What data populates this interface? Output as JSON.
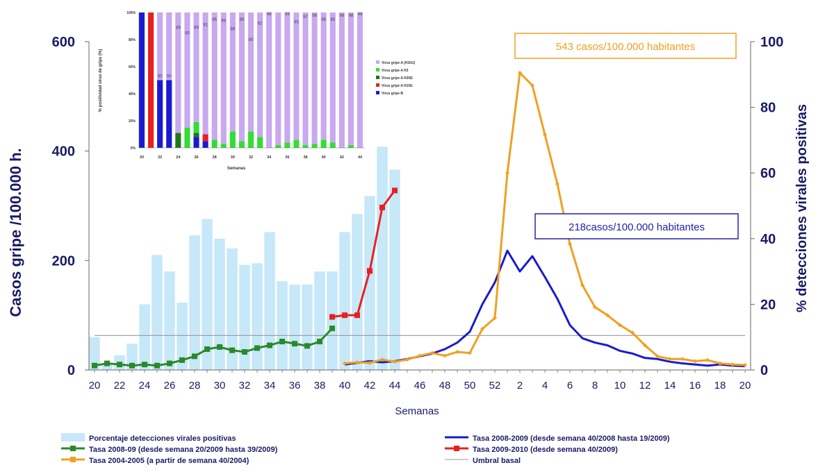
{
  "chart_data": [
    {
      "type": "bar+line",
      "ylabel_left": "Casos gripe /100.000 h.",
      "ylabel_right": "% detecciones virales positivas",
      "xlabel": "Semanas",
      "y_left_ticks": [
        "0",
        "200",
        "400",
        "600"
      ],
      "y_right_ticks": [
        "0",
        "20",
        "40",
        "60",
        "80",
        "100"
      ],
      "ylim_left": [
        0,
        600
      ],
      "ylim_right": [
        0,
        100
      ],
      "x_ticks": [
        "20",
        "22",
        "24",
        "26",
        "28",
        "30",
        "32",
        "34",
        "36",
        "38",
        "40",
        "42",
        "44",
        "46",
        "48",
        "50",
        "52",
        "2",
        "4",
        "6",
        "8",
        "10",
        "12",
        "14",
        "16",
        "18",
        "20"
      ],
      "x_count": 53,
      "bars": {
        "name": "Porcentaje detecciones virales positivas",
        "color": "#c6e8f8",
        "x_index": [
          0,
          1,
          2,
          3,
          4,
          5,
          6,
          7,
          8,
          9,
          10,
          11,
          12,
          13,
          14,
          15,
          16,
          17,
          18,
          19,
          20,
          21,
          22,
          23,
          24
        ],
        "values_pct": [
          10,
          2,
          4.5,
          8,
          20,
          35,
          30,
          20.5,
          41,
          46,
          40,
          37,
          32,
          32.5,
          42,
          27,
          26,
          26,
          30,
          30,
          42,
          47.5,
          53,
          68,
          61
        ]
      },
      "series": [
        {
          "name": "Tasa 2008-09 (desde semana 20/2009 hasta 39/2009)",
          "color": "#2a8a2a",
          "x_index": [
            0,
            1,
            2,
            3,
            4,
            5,
            6,
            7,
            8,
            9,
            10,
            11,
            12,
            13,
            14,
            15,
            16,
            17,
            18,
            19
          ],
          "values": [
            8,
            12,
            10,
            8,
            10,
            8,
            12,
            18,
            25,
            38,
            42,
            36,
            33,
            40,
            45,
            52,
            48,
            44,
            52,
            76
          ]
        },
        {
          "name": "Tasa 2009-2010 (desde semana 40/2009)",
          "color": "#e82020",
          "x_index": [
            19,
            20,
            21,
            22,
            23,
            24
          ],
          "values": [
            97,
            100,
            100,
            181,
            297,
            328
          ]
        },
        {
          "name": "Tasa 2008-2009 (desde semana 40/2008 hasta 19/2009)",
          "color": "#1a1ad0",
          "x_index": [
            20,
            21,
            22,
            23,
            24,
            25,
            26,
            27,
            28,
            29,
            30,
            31,
            32,
            33,
            34,
            35,
            36,
            37,
            38,
            39,
            40,
            41,
            42,
            43,
            44,
            45,
            46,
            47,
            48,
            49,
            50,
            51,
            52
          ],
          "values": [
            10,
            13,
            16,
            14,
            16,
            20,
            25,
            30,
            38,
            50,
            70,
            120,
            160,
            218,
            180,
            208,
            170,
            130,
            82,
            58,
            50,
            45,
            35,
            30,
            22,
            20,
            15,
            12,
            10,
            8,
            10,
            8,
            7
          ]
        },
        {
          "name": "Tasa 2004-2005 (a partir de semana 40/2004)",
          "color": "#f0a020",
          "x_index": [
            20,
            21,
            22,
            23,
            24,
            25,
            26,
            27,
            28,
            29,
            30,
            31,
            32,
            33,
            34,
            35,
            36,
            37,
            38,
            39,
            40,
            41,
            42,
            43,
            44,
            45,
            46,
            47,
            48,
            49,
            50,
            51,
            52
          ],
          "values": [
            12,
            14,
            13,
            19,
            15,
            19,
            26,
            31,
            26,
            33,
            31,
            75,
            95,
            360,
            543,
            520,
            430,
            340,
            230,
            155,
            115,
            100,
            82,
            68,
            45,
            25,
            20,
            20,
            16,
            18,
            12,
            10,
            9
          ]
        },
        {
          "name": "Umbral basal",
          "color": "#999999",
          "constant": 63
        }
      ],
      "annotations": [
        {
          "text": "543 casos/100.000 habitantes",
          "color": "#f0a020"
        },
        {
          "text": "218casos/100.000 habitantes",
          "color": "#2222aa"
        }
      ],
      "legend": [
        {
          "label": "Porcentaje detecciones virales positivas",
          "kind": "bar",
          "color": "#c6e8f8"
        },
        {
          "label": "Tasa 2008-2009 (desde semana 40/2008 hasta 19/2009)",
          "kind": "line",
          "color": "#1a1ad0"
        },
        {
          "label": "Tasa 2008-09 (desde semana 20/2009 hasta 39/2009)",
          "kind": "marker-line",
          "color": "#2a8a2a"
        },
        {
          "label": "Tasa 2009-2010 (desde semana 40/2009)",
          "kind": "marker-line",
          "color": "#e82020"
        },
        {
          "label": "Tasa 2004-2005 (a partir de semana 40/2004)",
          "kind": "marker-line",
          "color": "#f0a020"
        },
        {
          "label": "Umbral basal",
          "kind": "line",
          "color": "#999999"
        }
      ]
    },
    {
      "type": "stacked-bar",
      "ylabel": "% positividad virus de gripe (%)",
      "xlabel": "Semanas",
      "y_ticks": [
        "0%",
        "20%",
        "40%",
        "60%",
        "80%",
        "100%"
      ],
      "x_ticks": [
        "20",
        "22",
        "24",
        "26",
        "28",
        "30",
        "32",
        "34",
        "36",
        "38",
        "40",
        "42",
        "44"
      ],
      "x_count": 25,
      "stack_order": [
        "Virus gripe B",
        "Virus gripe A H1N1",
        "Virus gripe A H3N2",
        "Virus gripe A H3",
        "Virus gripe A (H1N1)"
      ],
      "colors": {
        "Virus gripe B": "#1a1ad0",
        "Virus gripe A H1N1": "#e82020",
        "Virus gripe A H3N2": "#1a7a1a",
        "Virus gripe A H3": "#33dd33",
        "Virus gripe A (H1N1)": "#c8a8f0"
      },
      "series": [
        {
          "name": "Virus gripe B",
          "values": [
            100,
            0,
            50,
            50,
            0,
            0,
            8,
            5,
            0,
            0,
            0,
            0,
            0,
            0,
            0,
            0,
            0,
            0,
            0,
            0,
            0,
            0,
            0,
            0,
            0
          ]
        },
        {
          "name": "Virus gripe A H1N1",
          "values": [
            0,
            100,
            0,
            0,
            0,
            0,
            0,
            5,
            0,
            0,
            0,
            0,
            0,
            0,
            0,
            0,
            0,
            0,
            0,
            0,
            0,
            0,
            0,
            0,
            0
          ]
        },
        {
          "name": "Virus gripe A H3N2",
          "values": [
            0,
            0,
            0,
            0,
            11,
            0,
            3,
            0,
            0,
            0,
            0,
            0,
            0,
            0,
            0,
            0,
            0,
            0,
            0,
            0,
            0,
            0,
            0,
            0,
            0
          ]
        },
        {
          "name": "Virus gripe A H3",
          "values": [
            0,
            0,
            0,
            0,
            0,
            15,
            8,
            0,
            6,
            3,
            12,
            5,
            12,
            8,
            0,
            2,
            4,
            6,
            2,
            3,
            6,
            4,
            0,
            2,
            0
          ]
        },
        {
          "name": "Virus gripe A (H1N1)",
          "values": [
            0,
            0,
            50,
            50,
            89,
            85,
            81,
            90,
            94,
            97,
            88,
            95,
            88,
            92,
            100,
            98,
            96,
            94,
            98,
            97,
            94,
            96,
            100,
            98,
            100
          ]
        }
      ],
      "labels_above": [
        "",
        "",
        "50",
        "50",
        "89",
        "85",
        "89",
        "91",
        "95",
        "94",
        "88",
        "95",
        "80",
        "92",
        "99",
        "",
        "99",
        "93",
        "97",
        "98",
        "95",
        "95",
        "98",
        "98",
        "99"
      ],
      "legend": [
        {
          "label": "Virus gripe A (H1N1)",
          "color": "#c8a8f0"
        },
        {
          "label": "Virus gripe A H3",
          "color": "#33dd33"
        },
        {
          "label": "Virus gripe A H3N2",
          "color": "#1a7a1a"
        },
        {
          "label": "Virus gripe A H1N1",
          "color": "#e82020"
        },
        {
          "label": "Virus gripe B",
          "color": "#1a1ad0"
        }
      ]
    }
  ]
}
